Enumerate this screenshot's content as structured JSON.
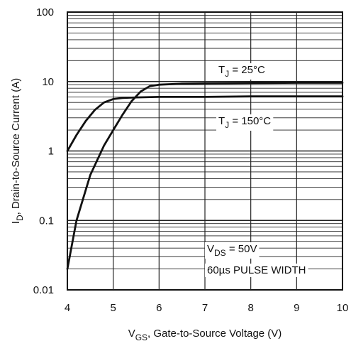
{
  "chart_data": {
    "type": "line",
    "title": "",
    "xlabel": {
      "main": "V",
      "sub": "GS",
      "rest": ", Gate-to-Source Voltage (V)"
    },
    "ylabel": {
      "main": "I",
      "sub": "D",
      "rest": ", Drain-to-Source Current (A)"
    },
    "xlim": [
      4,
      10
    ],
    "ylim": [
      0.01,
      100
    ],
    "yscale": "log",
    "grid": true,
    "x_tick_labels": [
      "4",
      "5",
      "6",
      "7",
      "8",
      "9",
      "10"
    ],
    "y_tick_labels": [
      "0.01",
      "0.1",
      "1",
      "10",
      "100"
    ],
    "series": [
      {
        "name": "T_J = 25°C",
        "style": "solid",
        "x": [
          4.0,
          4.2,
          4.5,
          4.8,
          5.0,
          5.2,
          5.4,
          5.6,
          5.8,
          6.0,
          6.5,
          7.0,
          8.0,
          9.0,
          10.0
        ],
        "y": [
          0.02,
          0.1,
          0.45,
          1.2,
          2.0,
          3.3,
          5.2,
          7.2,
          8.6,
          9.0,
          9.3,
          9.4,
          9.5,
          9.6,
          9.6
        ]
      },
      {
        "name": "T_J = 150°C",
        "style": "solid",
        "x": [
          4.0,
          4.2,
          4.4,
          4.6,
          4.8,
          5.0,
          5.2,
          5.5,
          6.0,
          7.0,
          8.0,
          9.0,
          10.0
        ],
        "y": [
          1.0,
          1.7,
          2.7,
          3.9,
          5.0,
          5.6,
          5.8,
          5.9,
          6.0,
          6.0,
          6.1,
          6.1,
          6.1
        ]
      }
    ],
    "annotations": [
      {
        "main": "T",
        "sub": "J",
        "rest": " =  25°C"
      },
      {
        "main": "T",
        "sub": "J",
        "rest": " = 150°C"
      },
      {
        "main": "V",
        "sub": "DS",
        "rest": " = 50V"
      },
      {
        "main": "60µs PULSE  WIDTH",
        "sub": "",
        "rest": ""
      }
    ]
  }
}
